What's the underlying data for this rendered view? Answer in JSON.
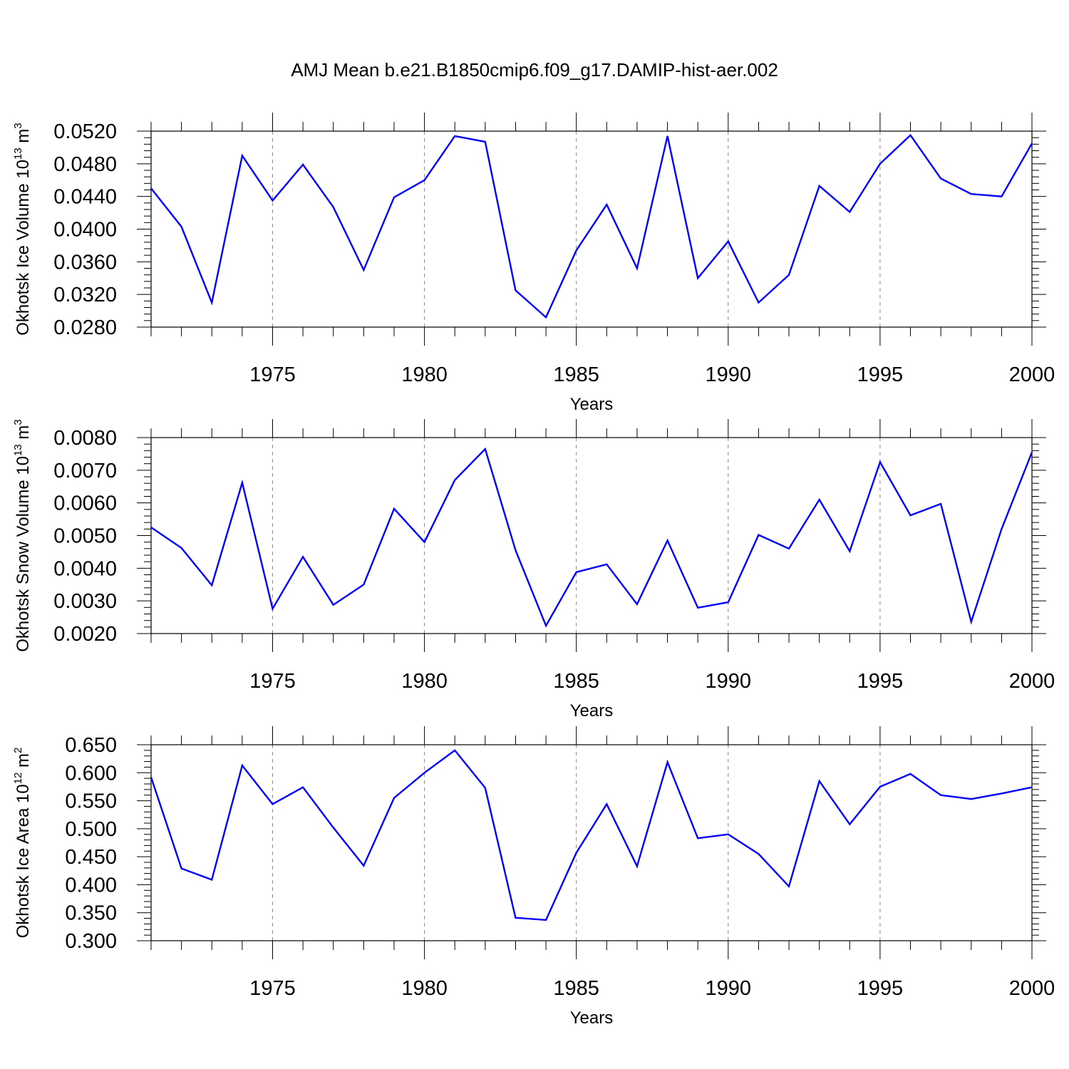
{
  "title": "AMJ Mean b.e21.B1850cmip6.f09_g17.DAMIP-hist-aer.002",
  "colors": {
    "line": "#0000ff",
    "axis": "#000000",
    "grid": "#888888"
  },
  "chart_data": [
    {
      "type": "line",
      "series_name": "Okhotsk Ice Volume",
      "ylabel_main": "Okhotsk Ice Volume 10",
      "ylabel_exp": "13",
      "ylabel_unit": " m",
      "ylabel_unit_exp": "3",
      "xlabel": "Years",
      "xlim": [
        1971,
        2000
      ],
      "ylim": [
        0.028,
        0.052
      ],
      "yticks": [
        0.028,
        0.032,
        0.036,
        0.04,
        0.044,
        0.048,
        0.052
      ],
      "ytick_labels": [
        "0.0280",
        "0.0320",
        "0.0360",
        "0.0400",
        "0.0440",
        "0.0480",
        "0.0520"
      ],
      "xticks": [
        1975,
        1980,
        1985,
        1990,
        1995,
        2000
      ],
      "xtick_labels": [
        "1975",
        "1980",
        "1985",
        "1990",
        "1995",
        "2000"
      ],
      "grid": "vertical-dashed",
      "x": [
        1971,
        1972,
        1973,
        1974,
        1975,
        1976,
        1977,
        1978,
        1979,
        1980,
        1981,
        1982,
        1983,
        1984,
        1985,
        1986,
        1987,
        1988,
        1989,
        1990,
        1991,
        1992,
        1993,
        1994,
        1995,
        1996,
        1997,
        1998,
        1999,
        2000
      ],
      "values": [
        0.045,
        0.0403,
        0.031,
        0.049,
        0.0435,
        0.0479,
        0.0427,
        0.035,
        0.0439,
        0.046,
        0.0514,
        0.0507,
        0.0325,
        0.0292,
        0.0374,
        0.043,
        0.0352,
        0.0514,
        0.034,
        0.0385,
        0.031,
        0.0344,
        0.0453,
        0.0421,
        0.048,
        0.0515,
        0.0462,
        0.0443,
        0.044,
        0.0505
      ]
    },
    {
      "type": "line",
      "series_name": "Okhotsk Snow Volume",
      "ylabel_main": "Okhotsk Snow Volume 10",
      "ylabel_exp": "13",
      "ylabel_unit": " m",
      "ylabel_unit_exp": "3",
      "xlabel": "Years",
      "xlim": [
        1971,
        2000
      ],
      "ylim": [
        0.002,
        0.008
      ],
      "yticks": [
        0.002,
        0.003,
        0.004,
        0.005,
        0.006,
        0.007,
        0.008
      ],
      "ytick_labels": [
        "0.0020",
        "0.0030",
        "0.0040",
        "0.0050",
        "0.0060",
        "0.0070",
        "0.0080"
      ],
      "xticks": [
        1975,
        1980,
        1985,
        1990,
        1995,
        2000
      ],
      "xtick_labels": [
        "1975",
        "1980",
        "1985",
        "1990",
        "1995",
        "2000"
      ],
      "grid": "vertical-dashed",
      "x": [
        1971,
        1972,
        1973,
        1974,
        1975,
        1976,
        1977,
        1978,
        1979,
        1980,
        1981,
        1982,
        1983,
        1984,
        1985,
        1986,
        1987,
        1988,
        1989,
        1990,
        1991,
        1992,
        1993,
        1994,
        1995,
        1996,
        1997,
        1998,
        1999,
        2000
      ],
      "values": [
        0.00525,
        0.00462,
        0.00348,
        0.00662,
        0.00276,
        0.00435,
        0.00288,
        0.0035,
        0.00582,
        0.0048,
        0.0067,
        0.00765,
        0.00455,
        0.00224,
        0.00388,
        0.00412,
        0.0029,
        0.00485,
        0.00279,
        0.00296,
        0.00502,
        0.0046,
        0.0061,
        0.00452,
        0.00725,
        0.00562,
        0.00597,
        0.00236,
        0.0052,
        0.00755
      ]
    },
    {
      "type": "line",
      "series_name": "Okhotsk Ice Area",
      "ylabel_main": "Okhotsk Ice Area 10",
      "ylabel_exp": "12",
      "ylabel_unit": " m",
      "ylabel_unit_exp": "2",
      "xlabel": "Years",
      "xlim": [
        1971,
        2000
      ],
      "ylim": [
        0.3,
        0.65
      ],
      "yticks": [
        0.3,
        0.35,
        0.4,
        0.45,
        0.5,
        0.55,
        0.6,
        0.65
      ],
      "ytick_labels": [
        "0.300",
        "0.350",
        "0.400",
        "0.450",
        "0.500",
        "0.550",
        "0.600",
        "0.650"
      ],
      "xticks": [
        1975,
        1980,
        1985,
        1990,
        1995,
        2000
      ],
      "xtick_labels": [
        "1975",
        "1980",
        "1985",
        "1990",
        "1995",
        "2000"
      ],
      "grid": "vertical-dashed",
      "x": [
        1971,
        1972,
        1973,
        1974,
        1975,
        1976,
        1977,
        1978,
        1979,
        1980,
        1981,
        1982,
        1983,
        1984,
        1985,
        1986,
        1987,
        1988,
        1989,
        1990,
        1991,
        1992,
        1993,
        1994,
        1995,
        1996,
        1997,
        1998,
        1999,
        2000
      ],
      "values": [
        0.592,
        0.429,
        0.409,
        0.613,
        0.544,
        0.574,
        0.502,
        0.434,
        0.555,
        0.6,
        0.64,
        0.573,
        0.341,
        0.337,
        0.457,
        0.544,
        0.433,
        0.619,
        0.483,
        0.49,
        0.455,
        0.397,
        0.585,
        0.508,
        0.575,
        0.598,
        0.56,
        0.553,
        0.563,
        0.574
      ]
    }
  ]
}
